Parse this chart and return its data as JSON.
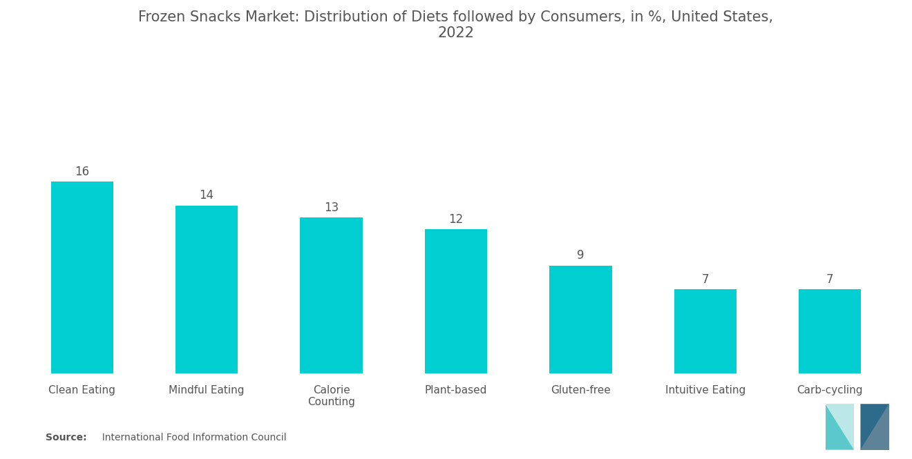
{
  "title": "Frozen Snacks Market: Distribution of Diets followed by Consumers, in %, United States,\n2022",
  "categories": [
    "Clean Eating",
    "Mindful Eating",
    "Calorie\nCounting",
    "Plant-based",
    "Gluten-free",
    "Intuitive Eating",
    "Carb-cycling"
  ],
  "values": [
    16,
    14,
    13,
    12,
    9,
    7,
    7
  ],
  "bar_color": "#00CED1",
  "background_color": "#ffffff",
  "title_color": "#555555",
  "label_color": "#555555",
  "source_bold": "Source:",
  "source_text": "  International Food Information Council",
  "ylim": [
    0,
    26
  ],
  "title_fontsize": 15,
  "bar_label_fontsize": 12,
  "xtick_fontsize": 11,
  "source_fontsize": 10,
  "bar_width": 0.5
}
